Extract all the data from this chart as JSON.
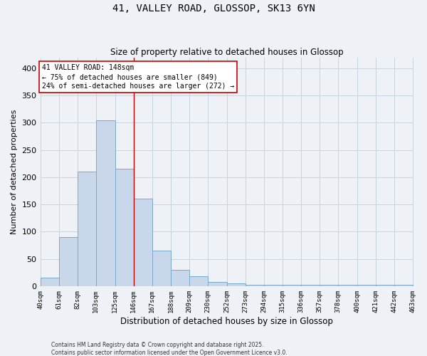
{
  "title": "41, VALLEY ROAD, GLOSSOP, SK13 6YN",
  "subtitle": "Size of property relative to detached houses in Glossop",
  "xlabel": "Distribution of detached houses by size in Glossop",
  "ylabel": "Number of detached properties",
  "bar_heights": [
    15,
    90,
    210,
    305,
    215,
    160,
    65,
    30,
    18,
    8,
    5,
    2,
    2,
    2,
    2,
    2,
    3,
    2,
    2,
    3
  ],
  "bin_edges": [
    40,
    61,
    82,
    103,
    125,
    146,
    167,
    188,
    209,
    230,
    252,
    273,
    294,
    315,
    336,
    357,
    378,
    400,
    421,
    442,
    463
  ],
  "x_tick_labels": [
    "40sqm",
    "61sqm",
    "82sqm",
    "103sqm",
    "125sqm",
    "146sqm",
    "167sqm",
    "188sqm",
    "209sqm",
    "230sqm",
    "252sqm",
    "273sqm",
    "294sqm",
    "315sqm",
    "336sqm",
    "357sqm",
    "378sqm",
    "400sqm",
    "421sqm",
    "442sqm",
    "463sqm"
  ],
  "bar_color": "#c8d8ea",
  "bar_edge_color": "#7aaac8",
  "vline_x": 146,
  "vline_color": "#cc0000",
  "annotation_text": "41 VALLEY ROAD: 148sqm\n← 75% of detached houses are smaller (849)\n24% of semi-detached houses are larger (272) →",
  "annotation_box_color": "#ffffff",
  "annotation_box_edge": "#cc0000",
  "ylim": [
    0,
    420
  ],
  "yticks": [
    0,
    50,
    100,
    150,
    200,
    250,
    300,
    350,
    400
  ],
  "grid_color": "#c8d4e0",
  "background_color": "#eef2f6",
  "footer_line1": "Contains HM Land Registry data © Crown copyright and database right 2025.",
  "footer_line2": "Contains public sector information licensed under the Open Government Licence v3.0."
}
